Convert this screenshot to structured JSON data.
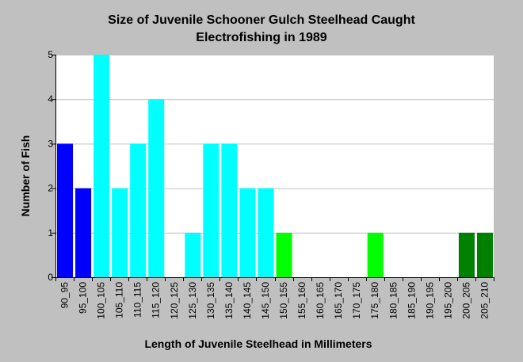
{
  "chart_data": {
    "type": "bar",
    "title": "Size of Juvenile Schooner Gulch Steelhead Caught",
    "subtitle": "Electrofishing in 1989",
    "xlabel": "Length of Juvenile Steelhead in Millimeters",
    "ylabel": "Number of Fish",
    "ylim": [
      0,
      5
    ],
    "yticks": [
      0,
      1,
      2,
      3,
      4,
      5
    ],
    "grid": true,
    "categories": [
      "90_95",
      "95_100",
      "100_105",
      "105_110",
      "110_115",
      "115_120",
      "120_125",
      "125_130",
      "130_135",
      "135_140",
      "140_145",
      "145_150",
      "150_155",
      "155_160",
      "160_165",
      "165_170",
      "170_175",
      "175_180",
      "180_185",
      "185_190",
      "190_195",
      "195_200",
      "200_205",
      "205_210"
    ],
    "values": [
      3,
      2,
      5,
      2,
      3,
      4,
      0,
      1,
      3,
      3,
      2,
      2,
      1,
      0,
      0,
      0,
      0,
      1,
      0,
      0,
      0,
      0,
      1,
      1
    ],
    "colors": [
      "#0000ff",
      "#0000ff",
      "#00ffff",
      "#00ffff",
      "#00ffff",
      "#00ffff",
      "#00ffff",
      "#00ffff",
      "#00ffff",
      "#00ffff",
      "#00ffff",
      "#00ffff",
      "#00ff00",
      "#00ff00",
      "#00ff00",
      "#00ff00",
      "#00ff00",
      "#00ff00",
      "#008000",
      "#008000",
      "#008000",
      "#008000",
      "#008000",
      "#008000"
    ],
    "plot_background": "#ffffff",
    "grid_color": "#c0c0c0"
  }
}
